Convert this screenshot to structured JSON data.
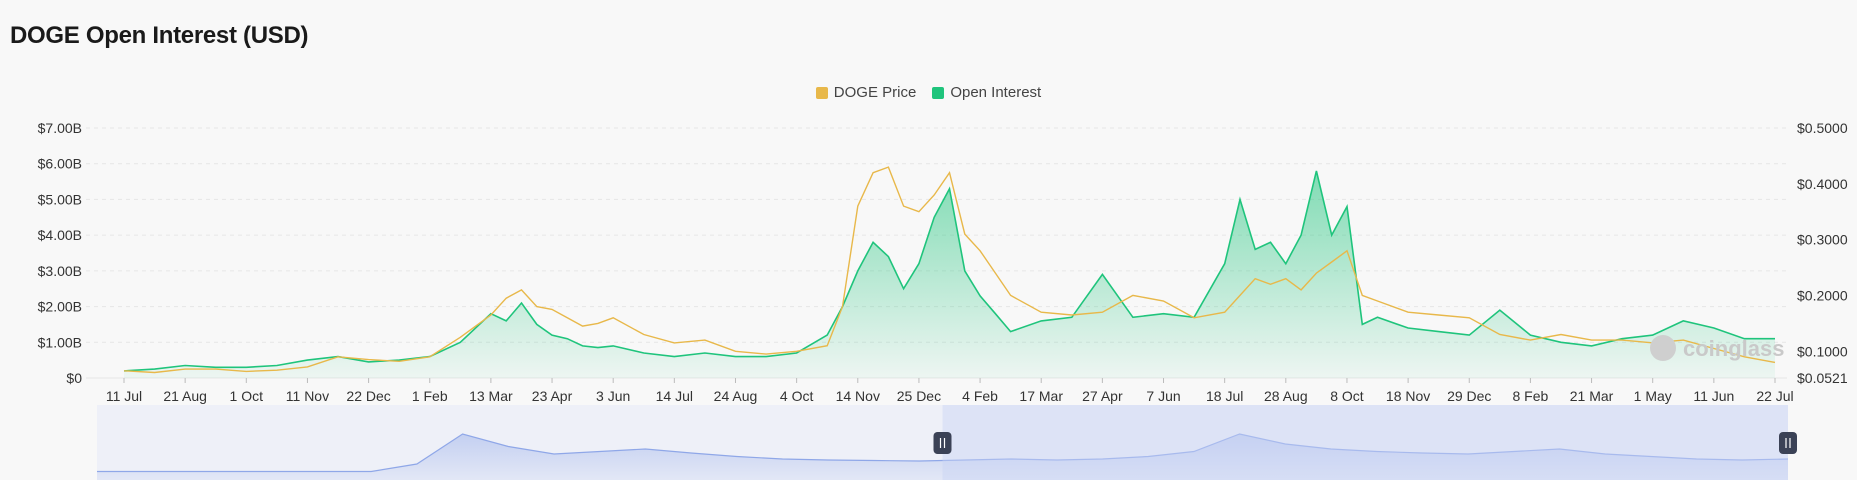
{
  "page": {
    "title": "DOGE Open Interest (USD)"
  },
  "colors": {
    "price": "#e8b84a",
    "oi": "#1fc47c",
    "navigator": "#8fa7e8",
    "grid": "#e6e6e6"
  },
  "watermark": {
    "text": "coinglass",
    "icon": "coinglass-logo-icon"
  },
  "chart_data": {
    "type": "area",
    "title": "DOGE Open Interest (USD)",
    "legend_position": "top-center",
    "grid": true,
    "x_ticks": [
      "11 Jul",
      "21 Aug",
      "1 Oct",
      "11 Nov",
      "22 Dec",
      "1 Feb",
      "13 Mar",
      "23 Apr",
      "3 Jun",
      "14 Jul",
      "24 Aug",
      "4 Oct",
      "14 Nov",
      "25 Dec",
      "4 Feb",
      "17 Mar",
      "27 Apr",
      "7 Jun",
      "18 Jul",
      "28 Aug",
      "8 Oct",
      "18 Nov",
      "29 Dec",
      "8 Feb",
      "21 Mar",
      "1 May",
      "11 Jun",
      "22 Jul"
    ],
    "y_left": {
      "ticks": [
        "$0",
        "$1.00B",
        "$2.00B",
        "$3.00B",
        "$4.00B",
        "$5.00B",
        "$6.00B",
        "$7.00B"
      ],
      "ylim": [
        0,
        7
      ]
    },
    "y_right": {
      "ticks": [
        "$0.0521",
        "$0.1000",
        "$0.2000",
        "$0.3000",
        "$0.4000",
        "$0.5000"
      ],
      "tick_values": [
        0.0521,
        0.1,
        0.2,
        0.3,
        0.4,
        0.5
      ],
      "ylim": [
        0.0521,
        0.5
      ]
    },
    "series": [
      {
        "name": "DOGE Price",
        "axis": "right",
        "type": "line",
        "color": "#e8b84a",
        "x": [
          0,
          0.5,
          1,
          1.5,
          2,
          2.5,
          3,
          3.5,
          4,
          4.5,
          5,
          5.5,
          6,
          6.25,
          6.5,
          6.75,
          7,
          7.25,
          7.5,
          7.75,
          8,
          8.5,
          9,
          9.5,
          10,
          10.5,
          11,
          11.5,
          11.75,
          12,
          12.25,
          12.5,
          12.75,
          13,
          13.25,
          13.5,
          13.75,
          14,
          14.25,
          14.5,
          15,
          15.5,
          16,
          16.5,
          17,
          17.5,
          18,
          18.25,
          18.5,
          18.75,
          19,
          19.25,
          19.5,
          19.75,
          20,
          20.25,
          20.5,
          21,
          21.5,
          22,
          22.5,
          23,
          23.5,
          24,
          24.5,
          25,
          25.5,
          26,
          26.5,
          27
        ],
        "values": [
          0.065,
          0.062,
          0.068,
          0.068,
          0.064,
          0.066,
          0.072,
          0.09,
          0.085,
          0.082,
          0.09,
          0.125,
          0.165,
          0.195,
          0.21,
          0.18,
          0.175,
          0.16,
          0.145,
          0.15,
          0.16,
          0.13,
          0.115,
          0.12,
          0.1,
          0.095,
          0.1,
          0.11,
          0.18,
          0.36,
          0.42,
          0.43,
          0.36,
          0.35,
          0.38,
          0.42,
          0.31,
          0.28,
          0.24,
          0.2,
          0.17,
          0.165,
          0.17,
          0.2,
          0.19,
          0.16,
          0.17,
          0.2,
          0.23,
          0.22,
          0.23,
          0.21,
          0.24,
          0.26,
          0.28,
          0.2,
          0.19,
          0.17,
          0.165,
          0.16,
          0.13,
          0.12,
          0.13,
          0.12,
          0.12,
          0.115,
          0.12,
          0.105,
          0.09,
          0.08
        ]
      },
      {
        "name": "Open Interest",
        "axis": "left",
        "type": "area",
        "color": "#1fc47c",
        "x": [
          0,
          0.5,
          1,
          1.5,
          2,
          2.5,
          3,
          3.5,
          4,
          4.5,
          5,
          5.5,
          6,
          6.25,
          6.5,
          6.75,
          7,
          7.25,
          7.5,
          7.75,
          8,
          8.5,
          9,
          9.5,
          10,
          10.5,
          11,
          11.5,
          11.75,
          12,
          12.25,
          12.5,
          12.75,
          13,
          13.25,
          13.5,
          13.75,
          14,
          14.25,
          14.5,
          15,
          15.5,
          16,
          16.5,
          17,
          17.5,
          18,
          18.25,
          18.5,
          18.75,
          19,
          19.25,
          19.5,
          19.75,
          20,
          20.25,
          20.5,
          21,
          21.5,
          22,
          22.5,
          23,
          23.5,
          24,
          24.5,
          25,
          25.5,
          26,
          26.5,
          27
        ],
        "values": [
          0.2,
          0.25,
          0.35,
          0.3,
          0.3,
          0.35,
          0.5,
          0.6,
          0.45,
          0.5,
          0.6,
          1.0,
          1.8,
          1.6,
          2.1,
          1.5,
          1.2,
          1.1,
          0.9,
          0.85,
          0.9,
          0.7,
          0.6,
          0.7,
          0.6,
          0.6,
          0.7,
          1.2,
          2.0,
          3.0,
          3.8,
          3.4,
          2.5,
          3.2,
          4.5,
          5.3,
          3.0,
          2.3,
          1.8,
          1.3,
          1.6,
          1.7,
          2.9,
          1.7,
          1.8,
          1.7,
          3.2,
          5.0,
          3.6,
          3.8,
          3.2,
          4.0,
          5.8,
          4.0,
          4.8,
          1.5,
          1.7,
          1.4,
          1.3,
          1.2,
          1.9,
          1.2,
          1.0,
          0.9,
          1.1,
          1.2,
          1.6,
          1.4,
          1.1,
          1.1
        ]
      }
    ]
  },
  "navigator": {
    "values": [
      0.05,
      0.05,
      0.05,
      0.05,
      0.05,
      0.05,
      0.05,
      0.2,
      0.8,
      0.55,
      0.4,
      0.45,
      0.5,
      0.42,
      0.35,
      0.3,
      0.28,
      0.27,
      0.26,
      0.28,
      0.3,
      0.28,
      0.3,
      0.35,
      0.45,
      0.8,
      0.6,
      0.5,
      0.45,
      0.42,
      0.4,
      0.45,
      0.5,
      0.4,
      0.35,
      0.3,
      0.28,
      0.3
    ],
    "selection": {
      "start": 0.5,
      "end": 1.0
    }
  }
}
